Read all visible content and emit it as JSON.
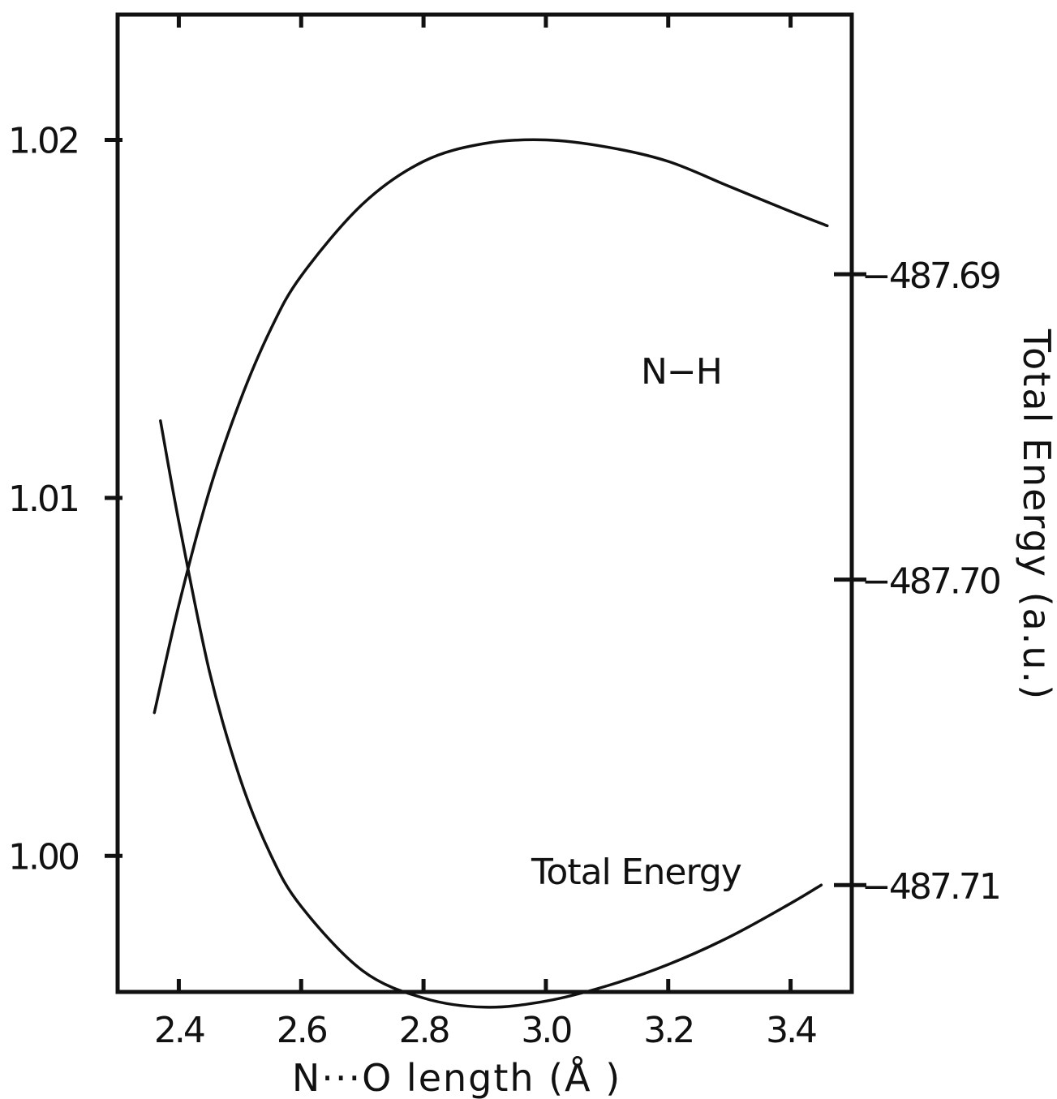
{
  "chart_data": {
    "type": "line",
    "title": "",
    "xlabel": "N···O length (Å )",
    "ylabel_left": "",
    "ylabel_right": "Total Energy (a.u.)",
    "xlim": [
      2.3,
      3.5
    ],
    "ylim_left": [
      0.9962,
      1.0235
    ],
    "ylim_right": [
      -487.7135,
      -487.6815
    ],
    "grid": false,
    "legend": "none",
    "x_ticks": [
      {
        "value": 2.4,
        "label": "2.4"
      },
      {
        "value": 2.6,
        "label": "2.6"
      },
      {
        "value": 2.8,
        "label": "2.8"
      },
      {
        "value": 3.0,
        "label": "3.0"
      },
      {
        "value": 3.2,
        "label": "3.2"
      },
      {
        "value": 3.4,
        "label": "3.4"
      }
    ],
    "y_left_ticks": [
      {
        "value": 1.0,
        "label": "1.00"
      },
      {
        "value": 1.01,
        "label": "1.01"
      },
      {
        "value": 1.02,
        "label": "1.02"
      }
    ],
    "y_right_ticks": [
      {
        "value": -487.71,
        "label": "−487.71"
      },
      {
        "value": -487.7,
        "label": "−487.70"
      },
      {
        "value": -487.69,
        "label": "−487.69"
      }
    ],
    "series": [
      {
        "name": "N−H",
        "axis": "left",
        "x": [
          2.36,
          2.4,
          2.45,
          2.5,
          2.55,
          2.6,
          2.7,
          2.8,
          2.9,
          3.0,
          3.1,
          3.2,
          3.3,
          3.4,
          3.46
        ],
        "y": [
          1.004,
          1.007,
          1.0102,
          1.0127,
          1.0147,
          1.0162,
          1.0182,
          1.0194,
          1.0199,
          1.02,
          1.0198,
          1.0194,
          1.0187,
          1.018,
          1.0176
        ]
      },
      {
        "name": "Total Energy",
        "axis": "right",
        "x": [
          2.37,
          2.4,
          2.45,
          2.5,
          2.55,
          2.6,
          2.7,
          2.8,
          2.9,
          3.0,
          3.1,
          3.2,
          3.3,
          3.4,
          3.45
        ],
        "y": [
          -487.6948,
          -487.6981,
          -487.703,
          -487.7065,
          -487.709,
          -487.7107,
          -487.7128,
          -487.7137,
          -487.714,
          -487.7138,
          -487.7133,
          -487.7126,
          -487.7117,
          -487.7106,
          -487.71
        ]
      }
    ]
  }
}
